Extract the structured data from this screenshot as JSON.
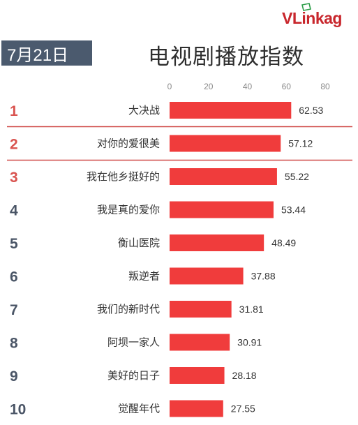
{
  "header": {
    "logo_text_a": "VLink",
    "logo_text_b": "ag",
    "date": "7月21日",
    "title": "电视剧播放指数"
  },
  "colors": {
    "bar": "#f03c3c",
    "rank_top": "#d9534f",
    "rank_rest": "#4a5566",
    "highlight_line": "#d04a48",
    "date_bg": "#4b5a6e"
  },
  "chart_data": {
    "type": "bar",
    "orientation": "horizontal",
    "title": "电视剧播放指数",
    "xlim": [
      0,
      80
    ],
    "xticks": [
      0,
      20,
      40,
      60,
      80
    ],
    "ranks": [
      "1",
      "2",
      "3",
      "4",
      "5",
      "6",
      "7",
      "8",
      "9",
      "10"
    ],
    "categories": [
      "大决战",
      "对你的爱很美",
      "我在他乡挺好的",
      "我是真的爱你",
      "衡山医院",
      "叛逆者",
      "我们的新时代",
      "阿坝一家人",
      "美好的日子",
      "觉醒年代"
    ],
    "values": [
      62.53,
      57.12,
      55.22,
      53.44,
      48.49,
      37.88,
      31.81,
      30.91,
      28.18,
      27.55
    ],
    "value_labels": [
      "62.53",
      "57.12",
      "55.22",
      "53.44",
      "48.49",
      "37.88",
      "31.81",
      "30.91",
      "28.18",
      "27.55"
    ],
    "highlighted_rank": "2"
  }
}
